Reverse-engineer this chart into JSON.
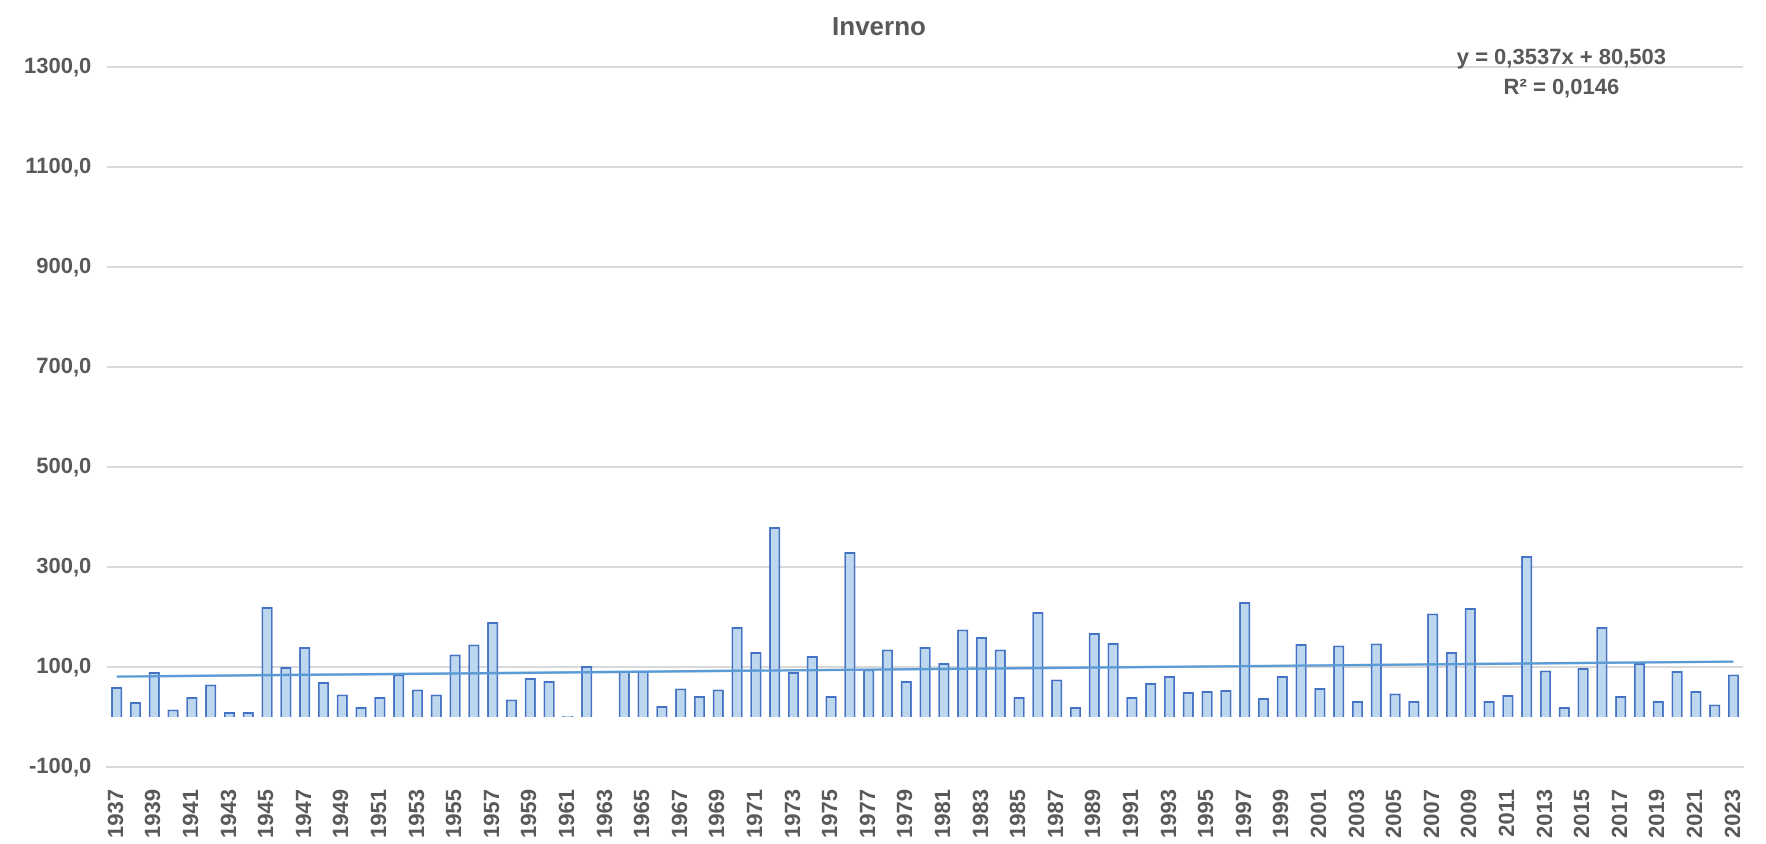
{
  "chart_data": {
    "type": "bar",
    "title": "Inverno",
    "categories": [
      "1937",
      null,
      "1939",
      null,
      "1941",
      null,
      "1943",
      null,
      "1945",
      null,
      "1947",
      null,
      "1949",
      null,
      "1951",
      null,
      "1953",
      null,
      "1955",
      null,
      "1957",
      null,
      "1959",
      null,
      "1961",
      null,
      "1963",
      null,
      "1965",
      null,
      "1967",
      null,
      "1969",
      null,
      "1971",
      null,
      "1973",
      null,
      "1975",
      null,
      "1977",
      null,
      "1979",
      null,
      "1981",
      null,
      "1983",
      null,
      "1985",
      null,
      "1987",
      null,
      "1989",
      null,
      "1991",
      null,
      "1993",
      null,
      "1995",
      null,
      "1997",
      null,
      "1999",
      null,
      "2001",
      null,
      "2003",
      null,
      "2005",
      null,
      "2007",
      null,
      "2009",
      null,
      "2011",
      null,
      "2013",
      null,
      "2015",
      null,
      "2017",
      null,
      "2019",
      null,
      "2021",
      null,
      "2023"
    ],
    "series": [
      {
        "color": "#bdd7ee",
        "values": [
          60,
          30,
          90,
          15,
          40,
          65,
          10,
          10,
          220,
          100,
          140,
          70,
          45,
          20,
          40,
          85,
          55,
          45,
          125,
          145,
          190,
          35,
          78,
          72,
          2,
          102,
          0,
          92,
          92,
          22,
          57,
          42,
          55,
          180,
          130,
          380,
          90,
          122,
          42,
          330,
          95,
          135,
          72,
          140,
          108,
          175,
          160,
          135,
          40,
          210,
          75,
          20,
          168,
          148,
          40,
          68,
          82,
          50,
          52,
          54,
          230,
          38,
          82,
          146,
          58,
          143,
          32,
          147,
          47,
          32,
          207,
          130,
          218,
          32,
          44,
          322,
          93,
          20,
          98,
          180,
          42,
          108,
          32,
          92,
          52,
          25,
          85
        ]
      },
      {
        "type": "line",
        "color": "#5b9bd5",
        "values": [
          81,
          null,
          null,
          null,
          null,
          null,
          null,
          null,
          null,
          null,
          null,
          null,
          null,
          null,
          null,
          null,
          null,
          null,
          null,
          null,
          null,
          null,
          null,
          null,
          null,
          null,
          null,
          null,
          null,
          null,
          null,
          null,
          null,
          null,
          null,
          null,
          null,
          null,
          null,
          null,
          null,
          null,
          null,
          null,
          null,
          null,
          null,
          null,
          null,
          null,
          null,
          null,
          null,
          null,
          null,
          null,
          null,
          null,
          null,
          null,
          null,
          null,
          null,
          null,
          null,
          null,
          null,
          null,
          null,
          null,
          null,
          null,
          null,
          null,
          null,
          null,
          null,
          null,
          null,
          null,
          null,
          null,
          null,
          null,
          null,
          null,
          111
        ]
      }
    ],
    "ylim": [
      -100,
      1300
    ],
    "yticks": [
      {
        "value": -100,
        "label": "-100,0"
      },
      {
        "value": 100,
        "label": "100,0"
      },
      {
        "value": 300,
        "label": "300,0"
      },
      {
        "value": 500,
        "label": "500,0"
      },
      {
        "value": 700,
        "label": "700,0"
      },
      {
        "value": 900,
        "label": "900,0"
      },
      {
        "value": 1100,
        "label": "1100,0"
      },
      {
        "value": 1300,
        "label": "1300,0"
      }
    ],
    "grid": "y",
    "legend": false,
    "marker": "none",
    "line_style": "solid",
    "annotations": [
      "y = 0,3537x + 80,503",
      "R² = 0,0146"
    ]
  }
}
